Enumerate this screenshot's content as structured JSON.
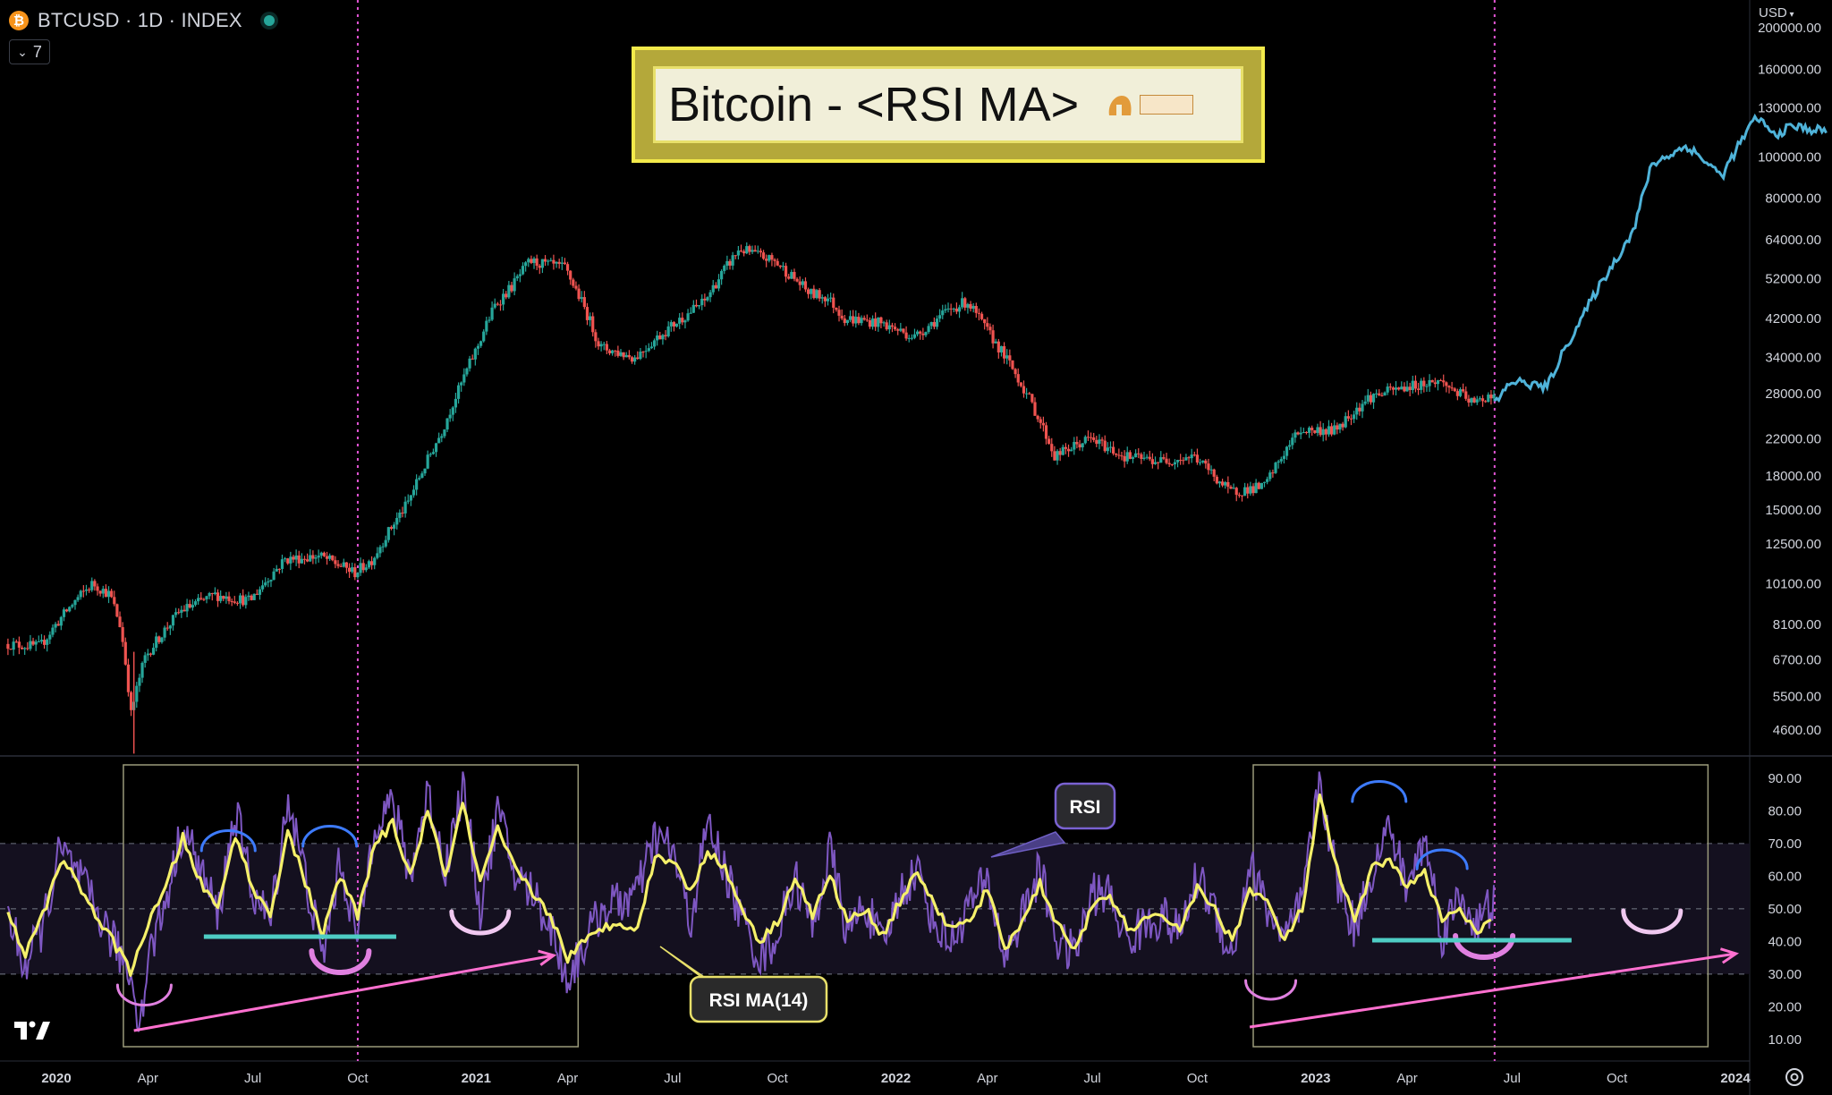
{
  "header": {
    "symbol": "BTCUSD · 1D · INDEX",
    "coin_glyph": "₿",
    "indicators_count": "7"
  },
  "title_banner": {
    "text": "Bitcoin - <RSI MA>"
  },
  "currency": "USD",
  "annotations": {
    "rsi_label": "RSI",
    "rsi_ma_label": "RSI MA(14)"
  },
  "colors": {
    "up": "#26a69a",
    "down": "#ef5350",
    "projection": "#4fb3d9",
    "rsi": "#7e57c2",
    "rsi_ma": "#f5f06a",
    "arc_blue": "#3d7bfd",
    "arc_pink": "#e080e0",
    "support": "#4ecdc4",
    "trend": "#ff70d0"
  },
  "chart_data": [
    {
      "type": "line",
      "name": "price",
      "log_scale": true,
      "ylim": [
        4000,
        230000
      ],
      "y_tick_labels": [
        "200000.00",
        "160000.00",
        "130000.00",
        "100000.00",
        "80000.00",
        "64000.00",
        "52000.00",
        "42000.00",
        "34000.00",
        "28000.00",
        "22000.00",
        "18000.00",
        "15000.00",
        "12500.00",
        "10100.00",
        "8100.00",
        "6700.00",
        "5500.00",
        "4600.00"
      ],
      "x_tick_labels": [
        "2020",
        "Apr",
        "Jul",
        "Oct",
        "2021",
        "Apr",
        "Jul",
        "Oct",
        "2022",
        "Apr",
        "Jul",
        "Oct",
        "2023",
        "Apr",
        "Jul",
        "Oct",
        "2024"
      ],
      "x_tick_months": [
        0,
        3,
        6,
        9,
        12,
        15,
        18,
        21,
        24,
        27,
        30,
        33,
        36,
        39,
        42,
        45,
        48
      ],
      "series": [
        {
          "x": [
            -1,
            0,
            1,
            1.5,
            2,
            2.3,
            2.6,
            3,
            4,
            5,
            6,
            7,
            8,
            9,
            9.5,
            10,
            10.5,
            11,
            11.5,
            12,
            12.5,
            13,
            13.5,
            14,
            15,
            16,
            17,
            18,
            19,
            20,
            21,
            22,
            22.5,
            23,
            24,
            25,
            26,
            26.5,
            27,
            28,
            29,
            30,
            31,
            32,
            33,
            34,
            35,
            36,
            37,
            38,
            39,
            40,
            41,
            41.5
          ],
          "y": [
            7300,
            7200,
            9200,
            10100,
            9500,
            8000,
            5000,
            6800,
            8700,
            9500,
            9200,
            11500,
            11700,
            10700,
            11500,
            13500,
            15500,
            19000,
            23000,
            29000,
            36000,
            45000,
            50000,
            57000,
            55000,
            36000,
            34000,
            40000,
            46000,
            61000,
            57000,
            48000,
            47000,
            42000,
            41000,
            38000,
            44000,
            46000,
            40000,
            30000,
            20000,
            22000,
            20000,
            19500,
            20000,
            16500,
            17000,
            23000,
            23000,
            27500,
            29000,
            30000,
            26500,
            28000
          ]
        },
        {
          "x": [
            41.5,
            42,
            43,
            44,
            45,
            45.5,
            46,
            47,
            48,
            49,
            49.5,
            50,
            50.5,
            51
          ],
          "y": [
            26500,
            30000,
            29000,
            42000,
            58000,
            68000,
            96000,
            106000,
            90000,
            124000,
            112000,
            118000,
            116000,
            115000
          ]
        }
      ]
    },
    {
      "type": "line",
      "name": "rsi",
      "ylim": [
        5,
        96
      ],
      "y_tick_labels": [
        "90.00",
        "80.00",
        "70.00",
        "60.00",
        "50.00",
        "40.00",
        "30.00",
        "20.00",
        "10.00"
      ],
      "series": [
        {
          "name": "RSI",
          "x": [
            -1,
            -0.5,
            0,
            0.5,
            1,
            1.5,
            2,
            2.5,
            2.8,
            3,
            3.5,
            4,
            4.5,
            5,
            5.5,
            6,
            6.5,
            7,
            7.5,
            8,
            8.5,
            9,
            9.5,
            10,
            10.5,
            11,
            11.5,
            12,
            12.5,
            13,
            13.5,
            14,
            14.5,
            15,
            15.5,
            16,
            16.5,
            17,
            17.5,
            18,
            18.5,
            19,
            19.5,
            20,
            20.5,
            21,
            21.5,
            22,
            22.5,
            23,
            23.5,
            24,
            24.5,
            25,
            25.5,
            26,
            26.5,
            27,
            27.5,
            28,
            28.5,
            29,
            29.5,
            30,
            30.5,
            31,
            31.5,
            32,
            32.5,
            33,
            33.5,
            34,
            34.5,
            35,
            35.5,
            36,
            36.5,
            37,
            37.5,
            38,
            38.5,
            39,
            39.5,
            40,
            40.5,
            41,
            41.5
          ],
          "y": [
            48,
            32,
            45,
            68,
            60,
            50,
            40,
            30,
            15,
            35,
            52,
            75,
            62,
            48,
            80,
            55,
            46,
            84,
            60,
            35,
            65,
            40,
            78,
            82,
            60,
            86,
            62,
            88,
            50,
            80,
            60,
            55,
            45,
            28,
            40,
            50,
            52,
            55,
            72,
            68,
            45,
            76,
            62,
            46,
            35,
            42,
            60,
            44,
            68,
            42,
            52,
            38,
            55,
            62,
            45,
            40,
            52,
            58,
            35,
            48,
            62,
            40,
            36,
            55,
            54,
            40,
            45,
            48,
            42,
            60,
            50,
            35,
            64,
            50,
            40,
            52,
            90,
            58,
            44,
            62,
            75,
            56,
            72,
            42,
            54,
            45,
            52
          ]
        },
        {
          "name": "RSI MA(14)",
          "x": [
            -1,
            -0.5,
            0,
            0.5,
            1,
            1.5,
            2,
            2.5,
            3,
            3.5,
            4,
            4.5,
            5,
            5.5,
            6,
            6.5,
            7,
            7.5,
            8,
            8.5,
            9,
            9.5,
            10,
            10.5,
            11,
            11.5,
            12,
            12.5,
            13,
            13.5,
            14,
            14.5,
            15,
            15.5,
            16,
            16.5,
            17,
            17.5,
            18,
            18.5,
            19,
            19.5,
            20,
            20.5,
            21,
            21.5,
            22,
            22.5,
            23,
            23.5,
            24,
            24.5,
            25,
            25.5,
            26,
            26.5,
            27,
            27.5,
            28,
            28.5,
            29,
            29.5,
            30,
            30.5,
            31,
            31.5,
            32,
            32.5,
            33,
            33.5,
            34,
            34.5,
            35,
            35.5,
            36,
            36.5,
            37,
            37.5,
            38,
            38.5,
            39,
            39.5,
            40,
            40.5,
            41,
            41.5
          ],
          "y": [
            48,
            36,
            48,
            65,
            58,
            48,
            40,
            31,
            45,
            56,
            72,
            58,
            50,
            73,
            56,
            48,
            74,
            58,
            42,
            60,
            48,
            70,
            76,
            60,
            80,
            60,
            82,
            58,
            74,
            62,
            55,
            48,
            35,
            40,
            44,
            46,
            44,
            66,
            65,
            55,
            68,
            62,
            50,
            40,
            46,
            60,
            48,
            60,
            46,
            50,
            42,
            52,
            62,
            50,
            44,
            46,
            56,
            38,
            46,
            58,
            45,
            38,
            50,
            54,
            44,
            46,
            48,
            44,
            56,
            50,
            40,
            56,
            52,
            40,
            50,
            84,
            62,
            46,
            62,
            66,
            56,
            62,
            46,
            50,
            42,
            47
          ]
        }
      ],
      "reference_lines": [
        70,
        50,
        30
      ]
    }
  ]
}
